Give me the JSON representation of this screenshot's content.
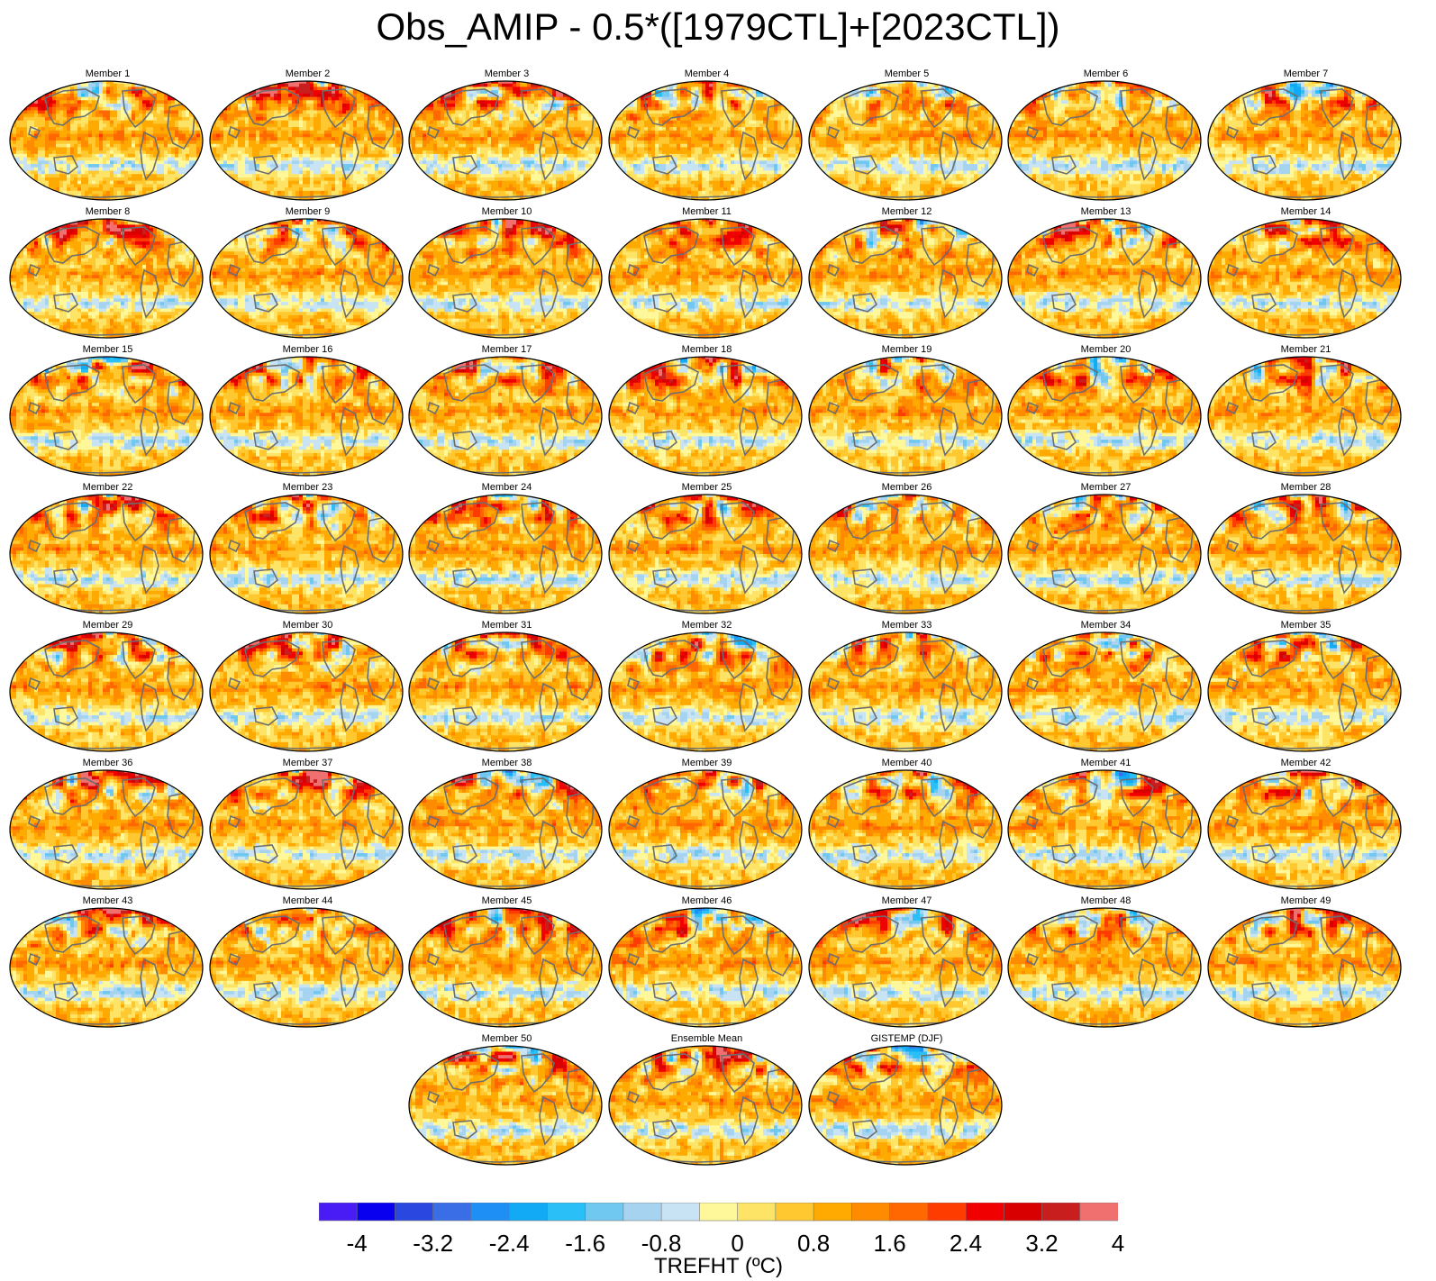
{
  "title": "Obs_AMIP - 0.5*([1979CTL]+[2023CTL])",
  "colorbar": {
    "title": "TREFHT (ºC)",
    "tick_labels": [
      "-4",
      "-3.2",
      "-2.4",
      "-1.6",
      "-0.8",
      "0",
      "0.8",
      "1.6",
      "2.4",
      "3.2",
      "4"
    ],
    "colors": [
      "#4a1cf5",
      "#0a00f0",
      "#2a48e0",
      "#3a6ee6",
      "#1e90f5",
      "#12aaf5",
      "#2ac0f7",
      "#70c8f0",
      "#a6d4f0",
      "#c8e4f4",
      "#fff89a",
      "#fde466",
      "#ffc830",
      "#ffaa00",
      "#ff8c00",
      "#ff6800",
      "#ff3c00",
      "#f00000",
      "#d80000",
      "#c81e1e",
      "#f07070"
    ]
  },
  "chart_data": {
    "type": "heatmap",
    "variable": "TREFHT",
    "units": "ºC",
    "color_range": [
      -4,
      4
    ],
    "color_interval": 0.4,
    "panels": [
      "Member 1",
      "Member 2",
      "Member 3",
      "Member 4",
      "Member 5",
      "Member 6",
      "Member 7",
      "Member 8",
      "Member 9",
      "Member 10",
      "Member 11",
      "Member 12",
      "Member 13",
      "Member 14",
      "Member 15",
      "Member 16",
      "Member 17",
      "Member 18",
      "Member 19",
      "Member 20",
      "Member 21",
      "Member 22",
      "Member 23",
      "Member 24",
      "Member 25",
      "Member 26",
      "Member 27",
      "Member 28",
      "Member 29",
      "Member 30",
      "Member 31",
      "Member 32",
      "Member 33",
      "Member 34",
      "Member 35",
      "Member 36",
      "Member 37",
      "Member 38",
      "Member 39",
      "Member 40",
      "Member 41",
      "Member 42",
      "Member 43",
      "Member 44",
      "Member 45",
      "Member 46",
      "Member 47",
      "Member 48",
      "Member 49",
      "Member 50",
      "Ensemble Mean",
      "GISTEMP (DJF)"
    ]
  }
}
